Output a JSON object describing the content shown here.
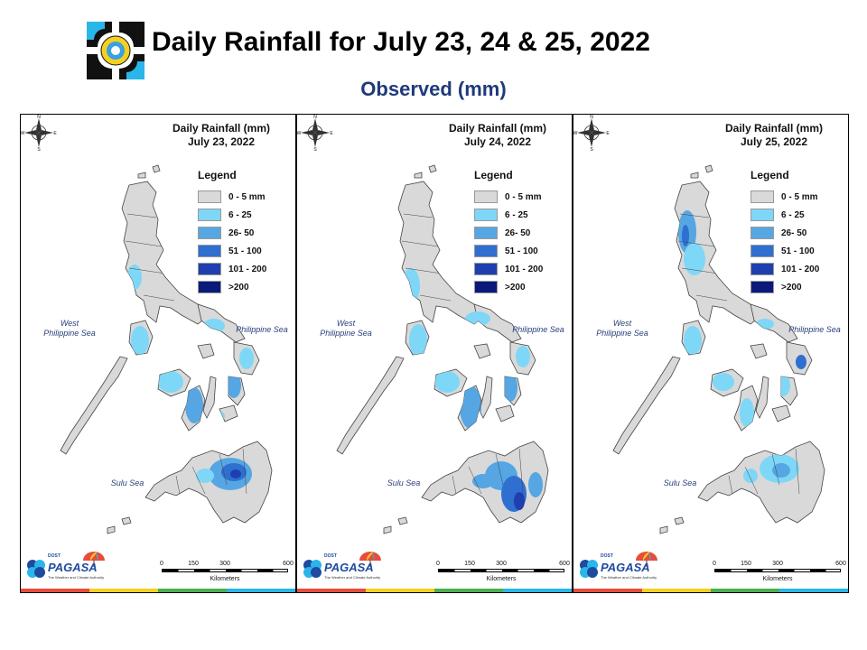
{
  "header": {
    "title": "Daily Rainfall for July 23, 24 & 25, 2022",
    "subtitle": "Observed (mm)"
  },
  "colors": {
    "land_base": "#d9d9d9",
    "border": "#444444",
    "c_6_25": "#7fd7f7",
    "c_26_50": "#56a6e3",
    "c_51_100": "#2f6fd0",
    "c_101_200": "#1f3fb0",
    "c_over_200": "#0b1a7a",
    "subtitle": "#1f3a7a"
  },
  "legend": {
    "title": "Legend",
    "items": [
      {
        "label": "0 - 5 mm",
        "color": "#d9d9d9"
      },
      {
        "label": "6 - 25",
        "color": "#7fd7f7"
      },
      {
        "label": "26- 50",
        "color": "#56a6e3"
      },
      {
        "label": "51 - 100",
        "color": "#2f6fd0"
      },
      {
        "label": "101 - 200",
        "color": "#1f3fb0"
      },
      {
        "label": ">200",
        "color": "#0b1a7a"
      }
    ]
  },
  "map_labels": {
    "west_sea": "West\nPhilippine Sea",
    "east_sea": "Philippine Sea",
    "south_sea": "Sulu Sea",
    "compass": {
      "n": "N",
      "s": "S",
      "e": "E",
      "w": "W"
    }
  },
  "scale": {
    "ticks": [
      "0",
      "150",
      "300",
      "600"
    ],
    "unit": "Kilometers"
  },
  "branding": {
    "logo_name": "PAGASA",
    "dost": "DOST",
    "tagline": "The Weather and Climate Authority"
  },
  "panels": [
    {
      "title_line1": "Daily Rainfall (mm)",
      "title_line2": "July 23, 2022",
      "day": "23"
    },
    {
      "title_line1": "Daily Rainfall (mm)",
      "title_line2": "July 24, 2022",
      "day": "24"
    },
    {
      "title_line1": "Daily Rainfall (mm)",
      "title_line2": "July 25, 2022",
      "day": "25"
    }
  ]
}
